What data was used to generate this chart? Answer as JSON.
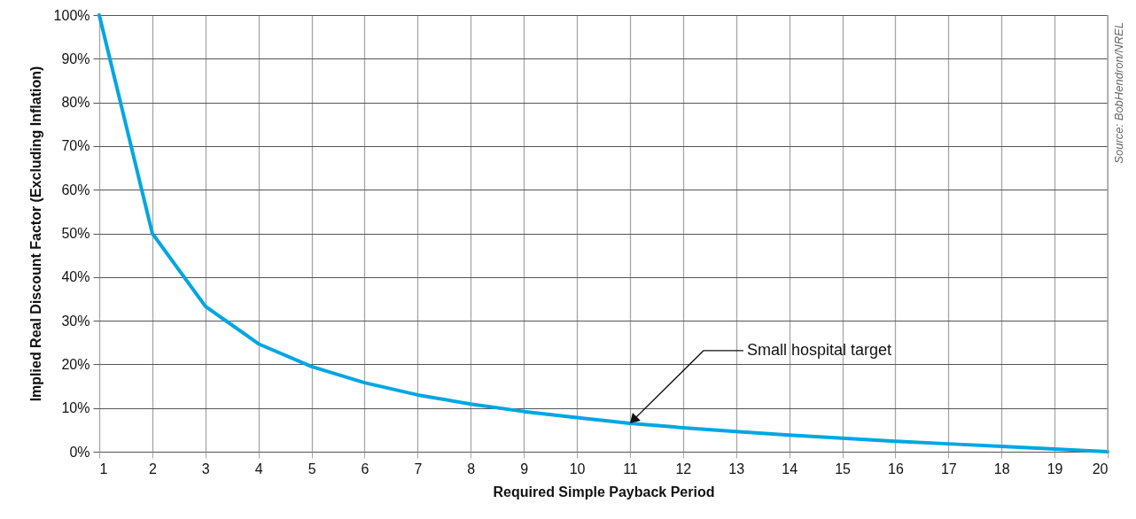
{
  "chart_data": {
    "type": "line",
    "xlabel": "Required Simple Payback Period",
    "ylabel": "Implied Real Discount Factor (Excluding Inflation)",
    "x": [
      1,
      2,
      3,
      4,
      5,
      6,
      7,
      8,
      9,
      10,
      11,
      12,
      13,
      14,
      15,
      16,
      17,
      18,
      19,
      20
    ],
    "series": [
      {
        "color": "#00a6e2",
        "values": [
          100,
          50,
          33.3,
          24.7,
          19.5,
          15.8,
          13,
          10.9,
          9.2,
          7.8,
          6.5,
          5.5,
          4.6,
          3.8,
          3.1,
          2.4,
          1.8,
          1.2,
          0.6,
          0
        ]
      }
    ],
    "xlim": [
      1,
      20
    ],
    "xticks": [
      1,
      2,
      3,
      4,
      5,
      6,
      7,
      8,
      9,
      10,
      11,
      12,
      13,
      14,
      15,
      16,
      17,
      18,
      19,
      20
    ],
    "ylim": [
      0,
      100
    ],
    "yticks": [
      {
        "value": 0,
        "label": "0%"
      },
      {
        "value": 10,
        "label": "10%"
      },
      {
        "value": 20,
        "label": "20%"
      },
      {
        "value": 30,
        "label": "30%"
      },
      {
        "value": 40,
        "label": "40%"
      },
      {
        "value": 50,
        "label": "50%"
      },
      {
        "value": 60,
        "label": "60%"
      },
      {
        "value": 70,
        "label": "70%"
      },
      {
        "value": 80,
        "label": "80%"
      },
      {
        "value": 90,
        "label": "90%"
      },
      {
        "value": 100,
        "label": "100%"
      }
    ],
    "grid": true,
    "line_style": "solid",
    "annotations": [
      {
        "text": "Small hospital target",
        "x": 11,
        "y": 6.5
      },
      "Source: BobHendron/NREL"
    ]
  }
}
